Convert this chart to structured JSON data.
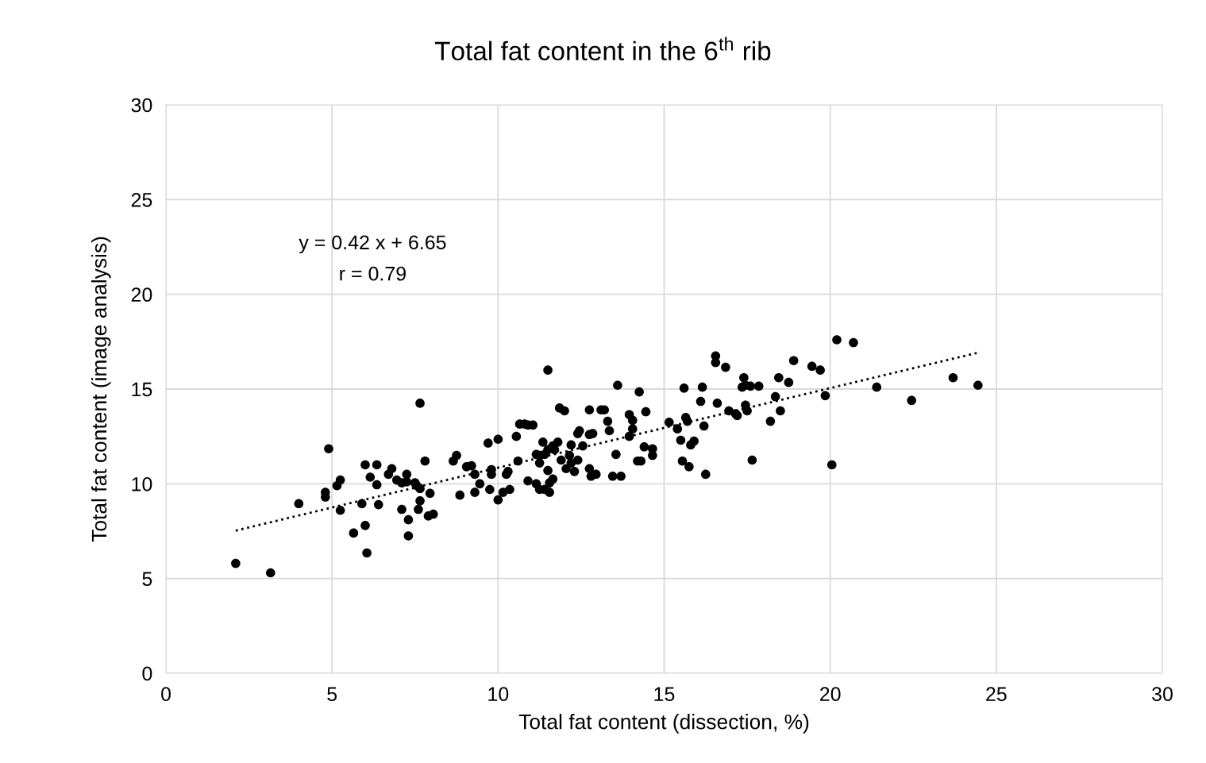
{
  "chart_data": {
    "type": "scatter",
    "title": "Total fat content in the 6$^{th}$ rib",
    "xlabel": "Total fat content (dissection, %)",
    "ylabel": "Total fat content (image analysis)",
    "annotations": [
      "y = 0.42 x + 6.65",
      "r = 0.79"
    ],
    "xlim": [
      0,
      30
    ],
    "xticks": [
      0,
      5,
      10,
      15,
      20,
      25,
      30
    ],
    "ylim": [
      0,
      30
    ],
    "yticks": [
      0,
      5,
      10,
      15,
      20,
      25,
      30
    ],
    "grid": true,
    "marker": "circle",
    "series": [
      {
        "color": "#000000",
        "x": [
          2.1,
          3.15,
          4.0,
          4.8,
          4.8,
          4.9,
          5.15,
          5.25,
          5.25,
          5.65,
          5.9,
          6.0,
          6.05,
          6.0,
          6.15,
          6.35,
          6.35,
          6.4,
          6.7,
          6.8,
          6.95,
          7.1,
          7.1,
          7.25,
          7.25,
          7.3,
          7.3,
          7.5,
          7.55,
          7.6,
          7.65,
          7.65,
          7.65,
          7.8,
          7.9,
          8.05,
          7.95,
          8.65,
          8.75,
          8.85,
          9.05,
          9.2,
          9.3,
          9.3,
          9.45,
          9.7,
          9.8,
          9.8,
          9.75,
          10.0,
          10.0,
          10.15,
          10.25,
          10.3,
          10.35,
          10.55,
          10.6,
          10.65,
          10.8,
          10.9,
          10.9,
          11.05,
          11.15,
          11.15,
          11.25,
          11.25,
          11.25,
          11.35,
          11.4,
          11.4,
          11.5,
          11.5,
          11.5,
          11.55,
          11.55,
          11.65,
          11.65,
          11.7,
          11.8,
          11.9,
          11.85,
          12.0,
          12.05,
          12.15,
          12.2,
          12.2,
          12.3,
          12.4,
          12.4,
          12.45,
          12.55,
          12.75,
          12.75,
          12.75,
          12.85,
          12.8,
          12.95,
          13.1,
          13.2,
          13.3,
          13.35,
          13.45,
          13.55,
          13.7,
          13.6,
          13.95,
          14.05,
          14.05,
          13.95,
          14.2,
          14.25,
          14.3,
          14.45,
          14.4,
          14.65,
          14.65,
          15.15,
          15.4,
          15.5,
          15.55,
          15.6,
          15.65,
          15.7,
          15.75,
          15.8,
          15.9,
          16.1,
          16.15,
          16.2,
          16.25,
          16.55,
          16.55,
          16.6,
          16.85,
          16.95,
          17.15,
          17.2,
          17.35,
          17.4,
          17.45,
          17.45,
          17.5,
          17.6,
          17.65,
          17.85,
          18.2,
          18.35,
          18.45,
          18.5,
          18.75,
          18.9,
          19.45,
          19.7,
          19.85,
          20.05,
          20.2,
          20.7,
          21.4,
          22.45,
          23.7,
          24.45
        ],
        "values": [
          5.8,
          5.3,
          8.95,
          9.3,
          9.55,
          11.85,
          9.9,
          10.2,
          8.6,
          7.4,
          8.95,
          7.8,
          6.35,
          11.0,
          10.35,
          11.0,
          9.95,
          8.9,
          10.5,
          10.8,
          10.2,
          8.65,
          10.05,
          10.1,
          10.5,
          8.1,
          7.25,
          10.05,
          9.9,
          8.65,
          14.25,
          9.75,
          9.1,
          11.2,
          8.3,
          8.4,
          9.5,
          11.2,
          11.5,
          9.4,
          10.9,
          10.95,
          9.55,
          10.5,
          10.0,
          12.15,
          10.5,
          10.75,
          9.7,
          12.35,
          9.15,
          9.55,
          10.5,
          10.65,
          9.7,
          12.5,
          11.2,
          13.15,
          13.15,
          10.15,
          13.1,
          13.1,
          10.0,
          11.55,
          11.5,
          11.1,
          9.7,
          12.2,
          11.55,
          9.7,
          11.8,
          16.0,
          10.7,
          9.55,
          10.05,
          12.0,
          10.25,
          11.8,
          12.2,
          11.25,
          14.0,
          13.85,
          10.8,
          11.5,
          12.05,
          11.1,
          10.65,
          11.25,
          12.65,
          12.8,
          12.0,
          13.9,
          10.8,
          12.6,
          12.65,
          10.4,
          10.5,
          13.9,
          13.9,
          13.3,
          12.8,
          10.4,
          11.55,
          10.4,
          15.2,
          13.65,
          13.35,
          12.9,
          12.5,
          11.2,
          14.85,
          11.2,
          13.8,
          11.95,
          11.85,
          11.5,
          13.25,
          12.9,
          12.3,
          11.2,
          15.05,
          13.5,
          13.3,
          10.9,
          12.05,
          12.25,
          14.35,
          15.1,
          13.05,
          10.5,
          16.75,
          16.4,
          14.25,
          16.15,
          13.85,
          13.7,
          13.6,
          15.1,
          15.6,
          15.2,
          14.15,
          13.85,
          15.15,
          11.25,
          15.15,
          13.3,
          14.6,
          15.6,
          13.85,
          15.35,
          16.5,
          16.2,
          16.0,
          14.65,
          11.0,
          17.6,
          17.45,
          15.1,
          14.4,
          15.6,
          15.2
        ]
      },
      {
        "type": "line",
        "color": "#000000",
        "line_style": "dotted",
        "marker": "none",
        "x": [
          2.1,
          24.45
        ],
        "values": [
          7.53,
          16.92
        ]
      }
    ]
  }
}
